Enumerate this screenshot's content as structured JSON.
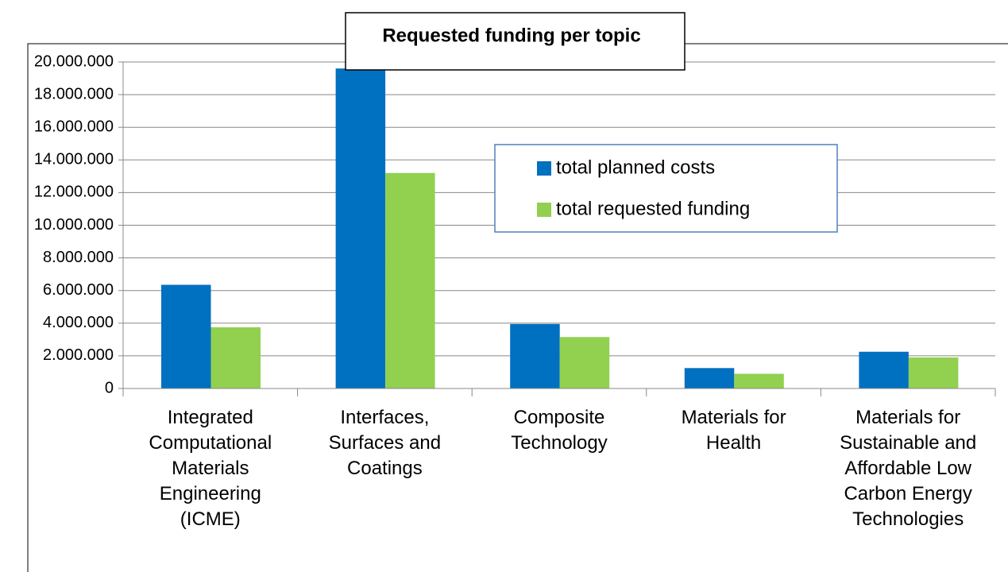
{
  "chart_data": {
    "type": "bar",
    "title": "Requested funding per topic",
    "categories": [
      "Integrated Computational Materials Engineering (ICME)",
      "Interfaces, Surfaces and Coatings",
      "Composite Technology",
      "Materials for Health",
      "Materials for Sustainable and Affordable Low Carbon Energy Technologies"
    ],
    "series": [
      {
        "name": "total planned costs",
        "color": "#0070c0",
        "values": [
          6350000,
          19600000,
          3950000,
          1250000,
          2250000
        ]
      },
      {
        "name": "total requested funding",
        "color": "#92d050",
        "values": [
          3750000,
          13200000,
          3150000,
          900000,
          1900000
        ]
      }
    ],
    "ylim": [
      0,
      20000000
    ],
    "yticks": [
      0,
      {
        "value": 2000000,
        "label": "2.000.000"
      },
      {
        "value": 4000000,
        "label": "4.000.000"
      },
      {
        "value": 6000000,
        "label": "6.000.000"
      },
      {
        "value": 8000000,
        "label": "8.000.000"
      },
      {
        "value": 10000000,
        "label": "10.000.000"
      },
      {
        "value": 12000000,
        "label": "12.000.000"
      },
      {
        "value": 14000000,
        "label": "14.000.000"
      },
      {
        "value": 16000000,
        "label": "16.000.000"
      },
      {
        "value": 18000000,
        "label": "18.000.000"
      },
      {
        "value": 20000000,
        "label": "20.000.000"
      }
    ],
    "grid": true,
    "legend": "top-right"
  }
}
